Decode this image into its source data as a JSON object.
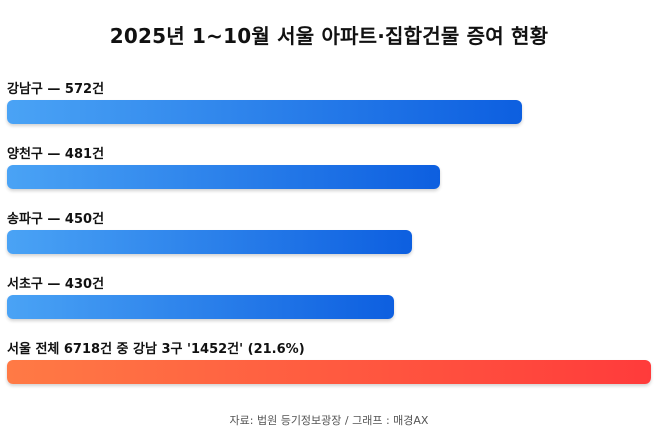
{
  "chart_data": {
    "type": "bar",
    "orientation": "horizontal",
    "title": "2025년 1~10월 서울 아파트·집합건물 증여 현황",
    "categories": [
      "강남구",
      "양천구",
      "송파구",
      "서초구",
      "서울 전체 6718건 중 강남 3구 '1452건'"
    ],
    "values": [
      572,
      481,
      450,
      430,
      1452
    ],
    "labels": [
      "강남구 — 572건",
      "양천구 — 481건",
      "송파구 — 450건",
      "서초구 — 430건",
      "서울 전체 6718건 중 강남 3구 '1452건' (21.6%)"
    ],
    "highlight_index": 4,
    "grid": false,
    "legend": "none",
    "colors": {
      "blue_start": "#4aa3f5",
      "blue_end": "#0d5fe0",
      "red_start": "#ff7a45",
      "red_end": "#ff3b3b"
    },
    "source": "자료: 법원 등기정보광장 / 그래프 : 매경AX"
  }
}
